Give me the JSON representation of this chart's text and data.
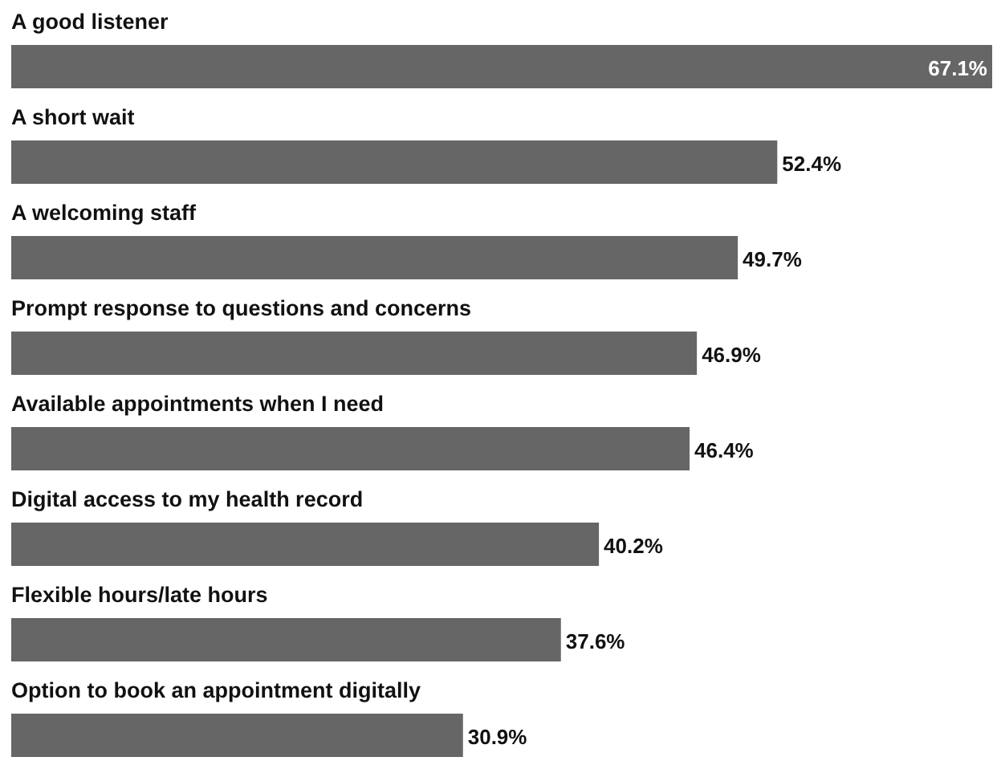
{
  "chart_data": {
    "type": "bar",
    "orientation": "horizontal",
    "categories": [
      "A good listener",
      "A short wait",
      "A welcoming staff",
      "Prompt response to questions and concerns",
      "Available appointments when I need",
      "Digital access to my health record",
      "Flexible hours/late hours",
      "Option to book an appointment digitally"
    ],
    "values": [
      67.1,
      52.4,
      49.7,
      46.9,
      46.4,
      40.2,
      37.6,
      30.9
    ],
    "value_labels": [
      "67.1%",
      "52.4%",
      "49.7%",
      "46.9%",
      "46.4%",
      "40.2%",
      "37.6%",
      "30.9%"
    ],
    "color": "#666666"
  }
}
